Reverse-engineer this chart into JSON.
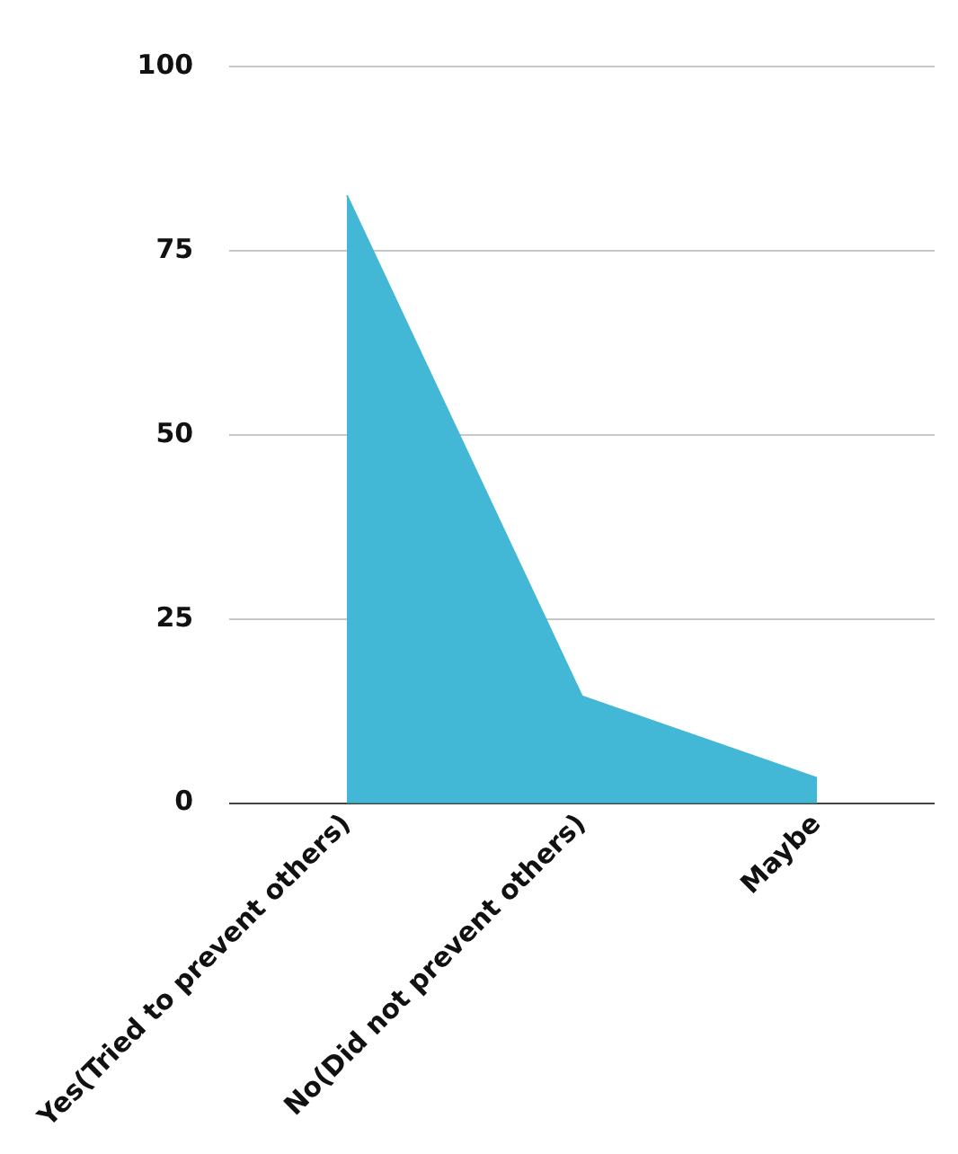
{
  "chart_data": {
    "type": "area",
    "categories": [
      "Yes(Tried to prevent others)",
      "No(Did not prevent others)",
      "Maybe"
    ],
    "series": [
      {
        "color": "#42b8d6",
        "values": [
          82.5,
          14.5,
          3.4
        ]
      }
    ],
    "ylim": [
      0,
      100
    ],
    "yticks": [
      0,
      25,
      50,
      75,
      100
    ],
    "grid": "y",
    "marker": "none"
  }
}
